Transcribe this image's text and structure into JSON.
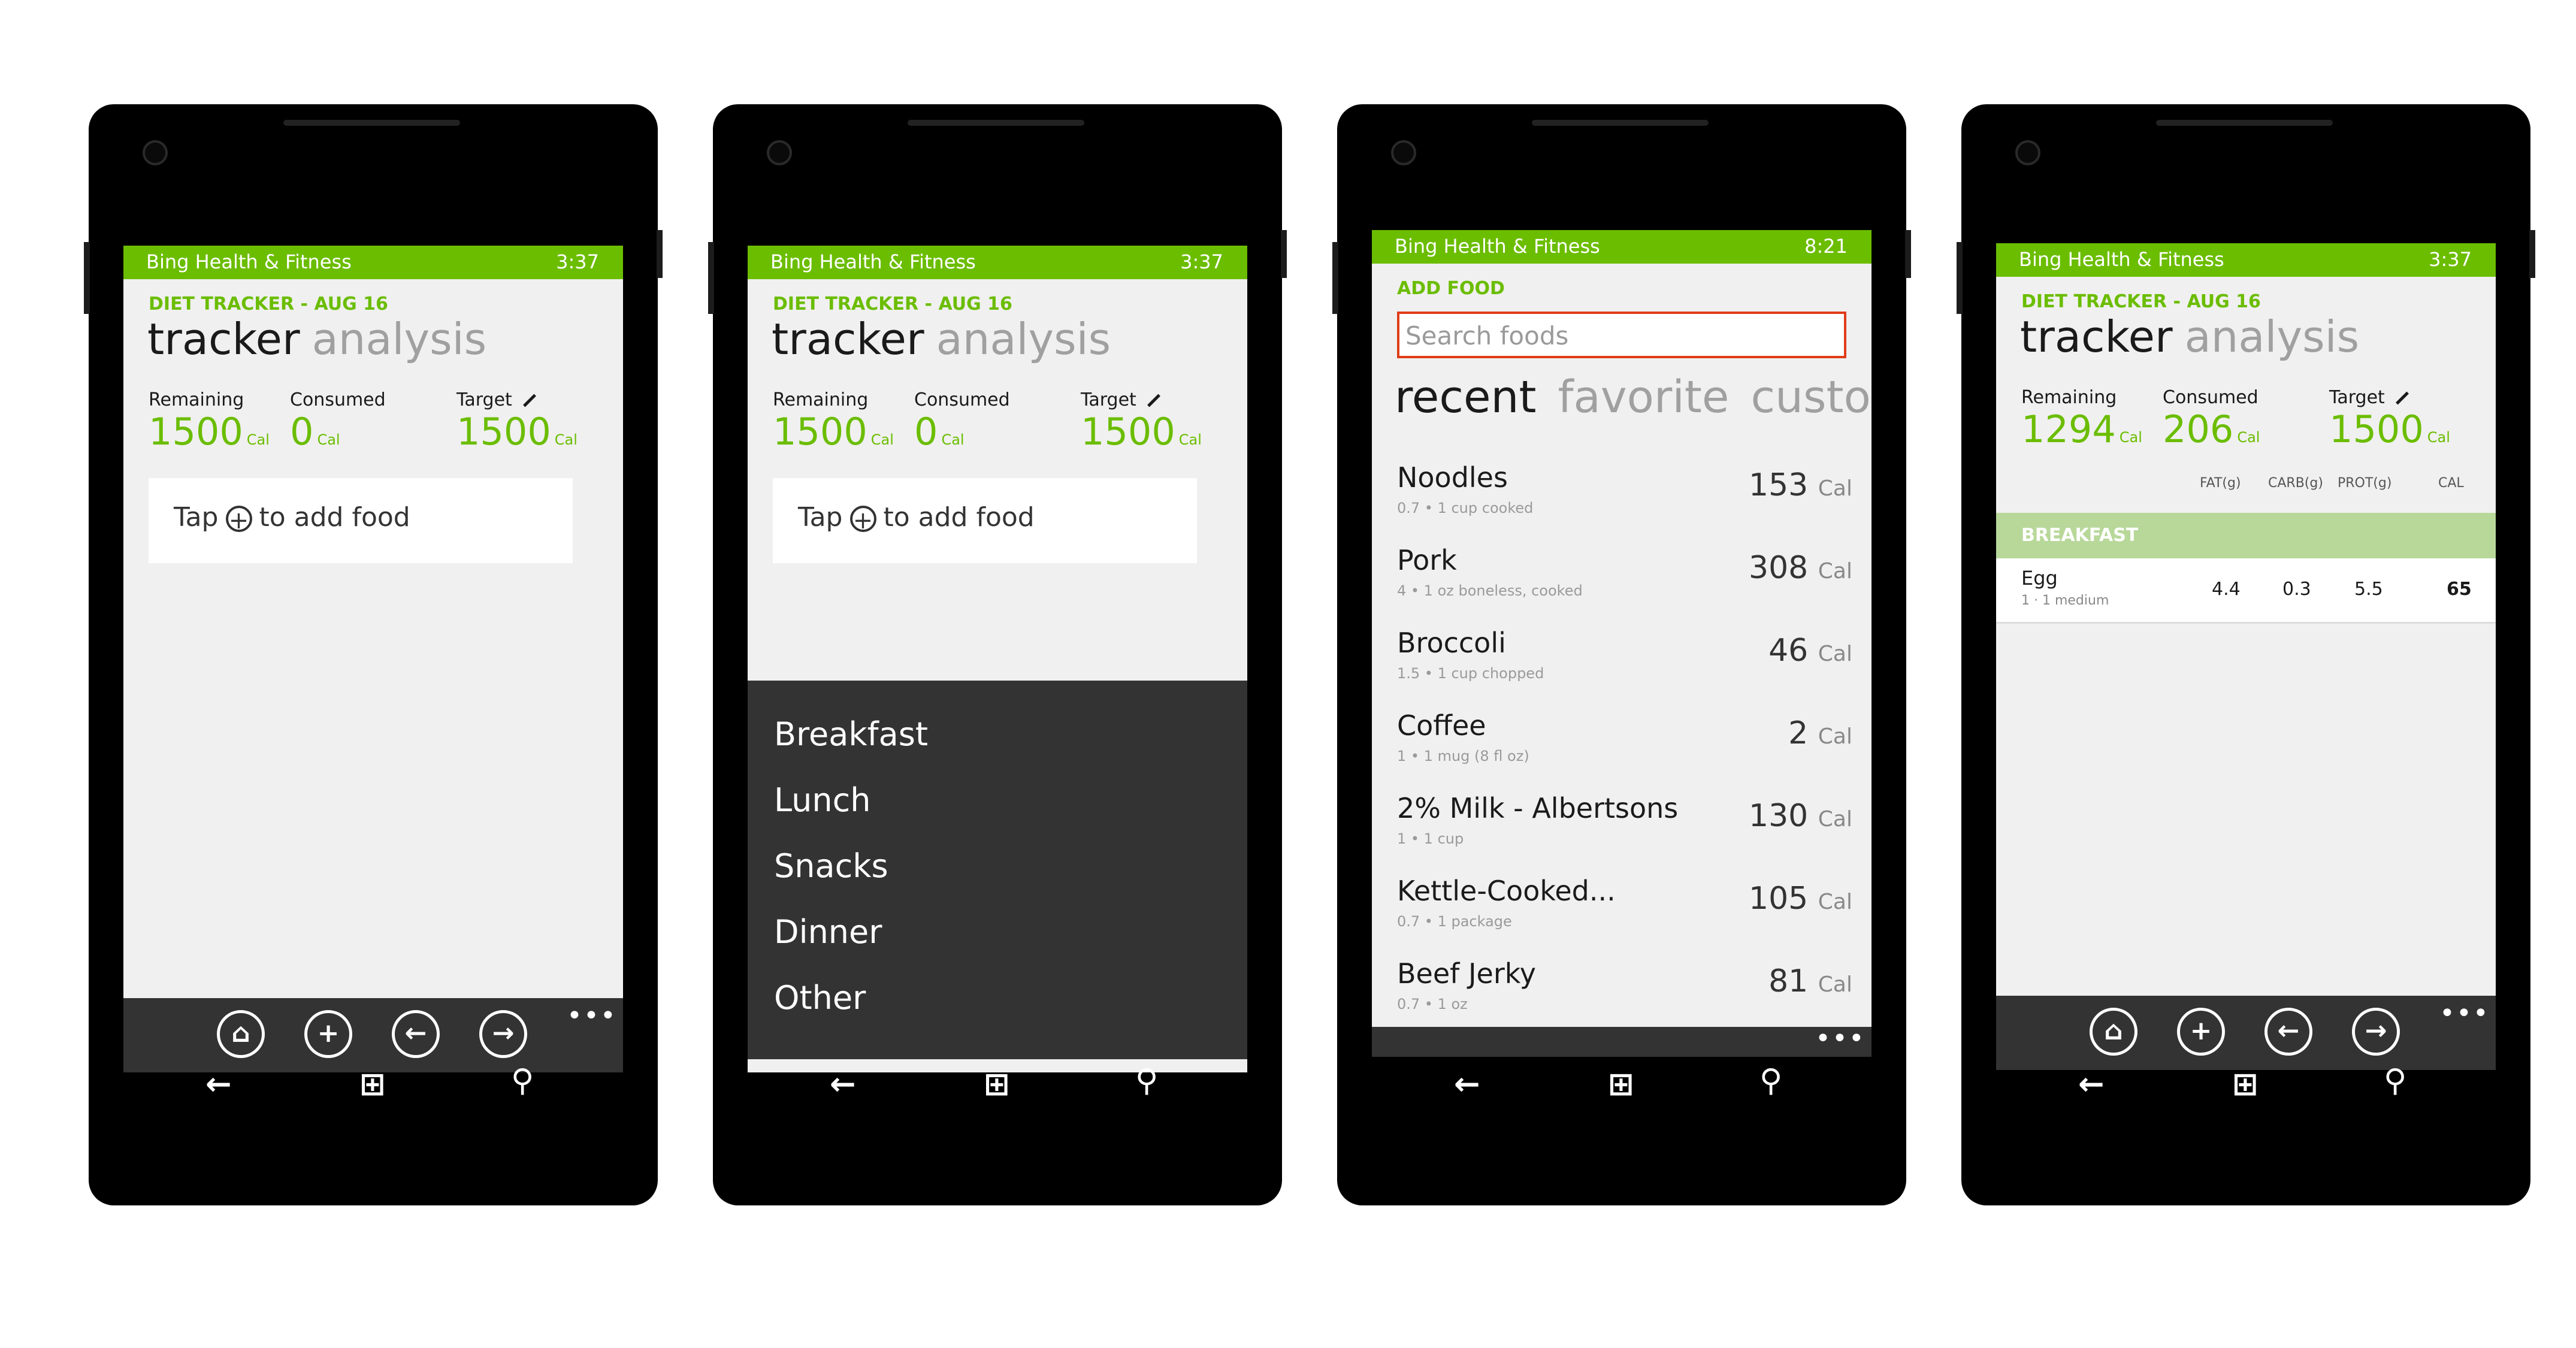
{
  "app_title": "Bing Health & Fitness",
  "phones": [
    {
      "clock": "3:37",
      "section": "DIET TRACKER - AUG 16",
      "pivot_active": "tracker",
      "pivot_inactive": "analysis",
      "remaining_label": "Remaining",
      "remaining_value": "1500",
      "consumed_label": "Consumed",
      "consumed_value": "0",
      "target_label": "Target",
      "target_value": "1500",
      "unit": "Cal",
      "tap_prefix": "Tap",
      "tap_suffix": "to add food"
    },
    {
      "clock": "3:37",
      "section": "DIET TRACKER - AUG 16",
      "pivot_active": "tracker",
      "pivot_inactive": "analysis",
      "remaining_label": "Remaining",
      "remaining_value": "1500",
      "consumed_label": "Consumed",
      "consumed_value": "0",
      "target_label": "Target",
      "target_value": "1500",
      "unit": "Cal",
      "tap_prefix": "Tap",
      "tap_suffix": "to add food",
      "menu": [
        "Breakfast",
        "Lunch",
        "Snacks",
        "Dinner",
        "Other"
      ]
    },
    {
      "clock": "8:21",
      "section": "ADD FOOD",
      "search_placeholder": "Search foods",
      "tabs": [
        "recent",
        "favorite",
        "custom"
      ],
      "unit": "Cal",
      "foods": [
        {
          "name": "Noodles",
          "detail": "0.7 • 1 cup cooked",
          "cal": "153"
        },
        {
          "name": "Pork",
          "detail": "4 • 1 oz boneless, cooked",
          "cal": "308"
        },
        {
          "name": "Broccoli",
          "detail": "1.5 • 1 cup chopped",
          "cal": "46"
        },
        {
          "name": "Coffee",
          "detail": "1 • 1 mug (8 fl oz)",
          "cal": "2"
        },
        {
          "name": "2% Milk - Albertsons",
          "detail": "1 • 1 cup",
          "cal": "130"
        },
        {
          "name": "Kettle-Cooked...",
          "detail": "0.7 • 1 package",
          "cal": "105"
        },
        {
          "name": "Beef Jerky",
          "detail": "0.7 • 1 oz",
          "cal": "81"
        }
      ]
    },
    {
      "clock": "3:37",
      "section": "DIET TRACKER - AUG 16",
      "pivot_active": "tracker",
      "pivot_inactive": "analysis",
      "remaining_label": "Remaining",
      "remaining_value": "1294",
      "consumed_label": "Consumed",
      "consumed_value": "206",
      "target_label": "Target",
      "target_value": "1500",
      "unit": "Cal",
      "columns": [
        "FAT(g)",
        "CARB(g)",
        "PROT(g)",
        "CAL"
      ],
      "meal_header": "BREAKFAST",
      "entry": {
        "name": "Egg",
        "detail": "1 · 1 medium",
        "fat": "4.4",
        "carb": "0.3",
        "prot": "5.5",
        "cal": "65"
      }
    }
  ],
  "app_bar_icons": [
    "home-icon",
    "add-icon",
    "back-arrow-icon",
    "forward-arrow-icon"
  ],
  "app_bar_more": "•••",
  "nav_icons": [
    "back-icon",
    "windows-start-icon",
    "search-icon"
  ],
  "colors": {
    "accent": "#6bbd00",
    "app_bar": "#333333",
    "search_border": "#e03c18"
  }
}
